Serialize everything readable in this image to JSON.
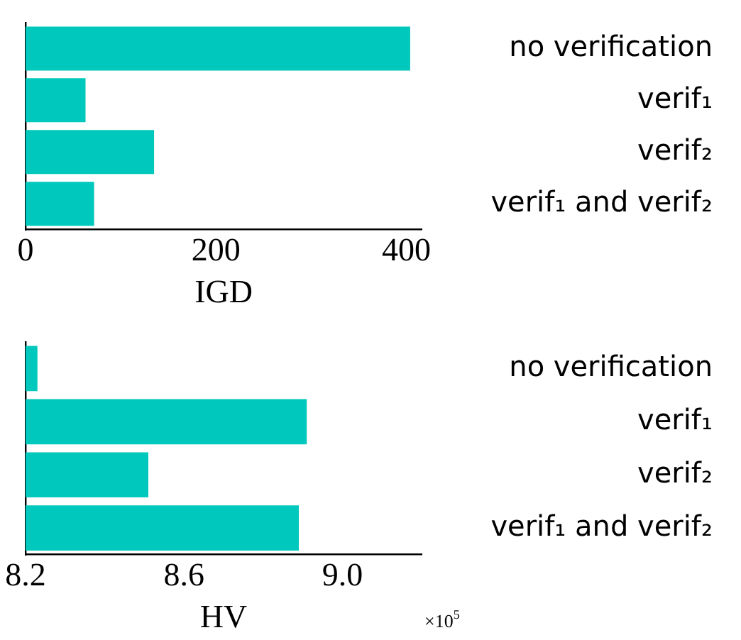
{
  "chart_data": [
    {
      "type": "bar",
      "orientation": "horizontal",
      "categories": [
        "no verification",
        "verif₁",
        "verif₂",
        "verif₁ and verif₂"
      ],
      "values": [
        404,
        63,
        135,
        72
      ],
      "color": "#00c8bc",
      "xlim": [
        0,
        416
      ],
      "xticks": [
        0,
        200,
        400
      ],
      "xlabel": "IGD"
    },
    {
      "type": "bar",
      "orientation": "horizontal",
      "categories": [
        "no verification",
        "verif₁",
        "verif₂",
        "verif₁ and verif₂"
      ],
      "values": [
        8.23,
        8.91,
        8.51,
        8.89
      ],
      "color": "#00c8bc",
      "xlim": [
        8.2,
        9.2
      ],
      "xticks": [
        8.2,
        8.6,
        {
          "value": 9.0,
          "label": "9.0"
        }
      ],
      "xlabel": "HV",
      "annotations": [
        "×10$^{5}$"
      ]
    }
  ]
}
